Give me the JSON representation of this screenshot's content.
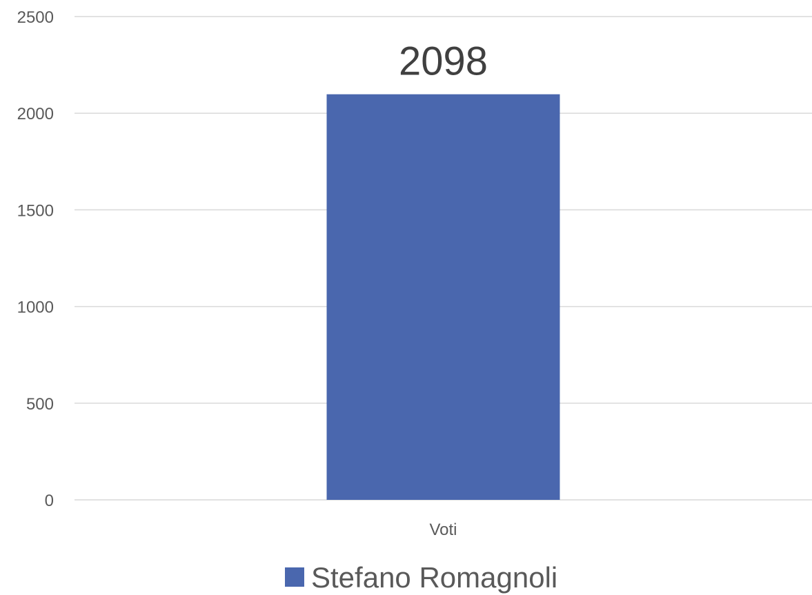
{
  "chart_data": {
    "type": "bar",
    "categories": [
      "Voti"
    ],
    "series": [
      {
        "name": "Stefano Romagnoli",
        "values": [
          2098
        ],
        "color": "#4a67ae"
      }
    ],
    "ylim": [
      0,
      2500
    ],
    "yticks": [
      0,
      500,
      1000,
      1500,
      2000,
      2500
    ],
    "ytick_labels": [
      "0",
      "500",
      "1000",
      "1500",
      "2000",
      "2500"
    ],
    "data_labels": [
      "2098"
    ],
    "grid": true,
    "legend_position": "bottom",
    "gridline_color": "#d9d9d9"
  }
}
